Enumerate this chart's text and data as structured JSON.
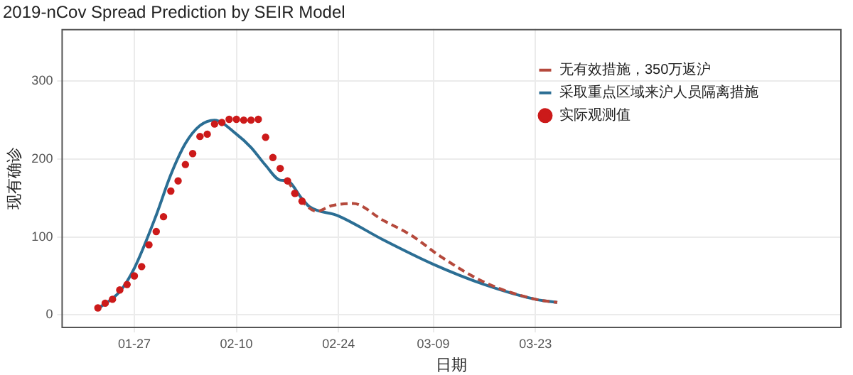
{
  "chart_data": {
    "type": "line",
    "title": "2019-nCov Spread Prediction by SEIR Model",
    "xlabel": "日期",
    "ylabel": "现有确诊",
    "xlim": [
      "--01-17",
      "--05-04"
    ],
    "xticks": [
      {
        "value": "--01-27",
        "label": "01-27"
      },
      {
        "value": "--02-10",
        "label": "02-10"
      },
      {
        "value": "--02-24",
        "label": "02-24"
      },
      {
        "value": "--03-09",
        "label": "03-09"
      },
      {
        "value": "--03-23",
        "label": "03-23"
      }
    ],
    "ylim": [
      -17,
      367
    ],
    "yticks": [
      0,
      100,
      200,
      300
    ],
    "grid": true,
    "legend": "top right",
    "series": [
      {
        "name": "无有效措施，350万返沪",
        "type": "line",
        "color": "#b5493c",
        "line_style": "dashed",
        "marker": "none",
        "x": [
          "--02-17",
          "--02-19",
          "--02-21",
          "--02-23",
          "--02-26",
          "--03-02",
          "--03-06",
          "--03-10",
          "--03-16",
          "--03-23",
          "--03-26"
        ],
        "values": [
          172,
          146,
          133,
          140,
          143,
          122,
          102,
          75,
          42,
          20,
          16
        ]
      },
      {
        "name": "采取重点区域来沪人员隔离措施",
        "type": "line",
        "color": "#2b6e94",
        "line_style": "solid",
        "marker": "none",
        "x": [
          "--01-22",
          "--01-25",
          "--01-27",
          "--01-30",
          "--02-01",
          "--02-03",
          "--02-05",
          "--02-07",
          "--02-10",
          "--02-12",
          "--02-14",
          "--02-16",
          "--02-17",
          "--02-19",
          "--02-20",
          "--02-24",
          "--03-02",
          "--03-09",
          "--03-16",
          "--03-23",
          "--03-26"
        ],
        "values": [
          8,
          30,
          60,
          128,
          180,
          220,
          243,
          250,
          232,
          215,
          192,
          173,
          172,
          149,
          139,
          127,
          97,
          65,
          39,
          20,
          16
        ]
      },
      {
        "name": "实际观测值",
        "type": "scatter",
        "color": "#cc1a1a",
        "marker": "circle",
        "x": [
          "--01-22",
          "--01-23",
          "--01-24",
          "--01-25",
          "--01-26",
          "--01-27",
          "--01-28",
          "--01-29",
          "--01-30",
          "--01-31",
          "--02-01",
          "--02-02",
          "--02-03",
          "--02-04",
          "--02-05",
          "--02-06",
          "--02-07",
          "--02-08",
          "--02-09",
          "--02-10",
          "--02-11",
          "--02-12",
          "--02-13",
          "--02-14",
          "--02-15",
          "--02-16",
          "--02-17",
          "--02-18",
          "--02-19"
        ],
        "values": [
          9,
          15,
          20,
          32,
          39,
          50,
          62,
          90,
          107,
          126,
          159,
          172,
          193,
          207,
          229,
          232,
          245,
          247,
          251,
          251,
          250,
          250,
          251,
          228,
          202,
          188,
          172,
          156,
          146
        ]
      }
    ]
  }
}
